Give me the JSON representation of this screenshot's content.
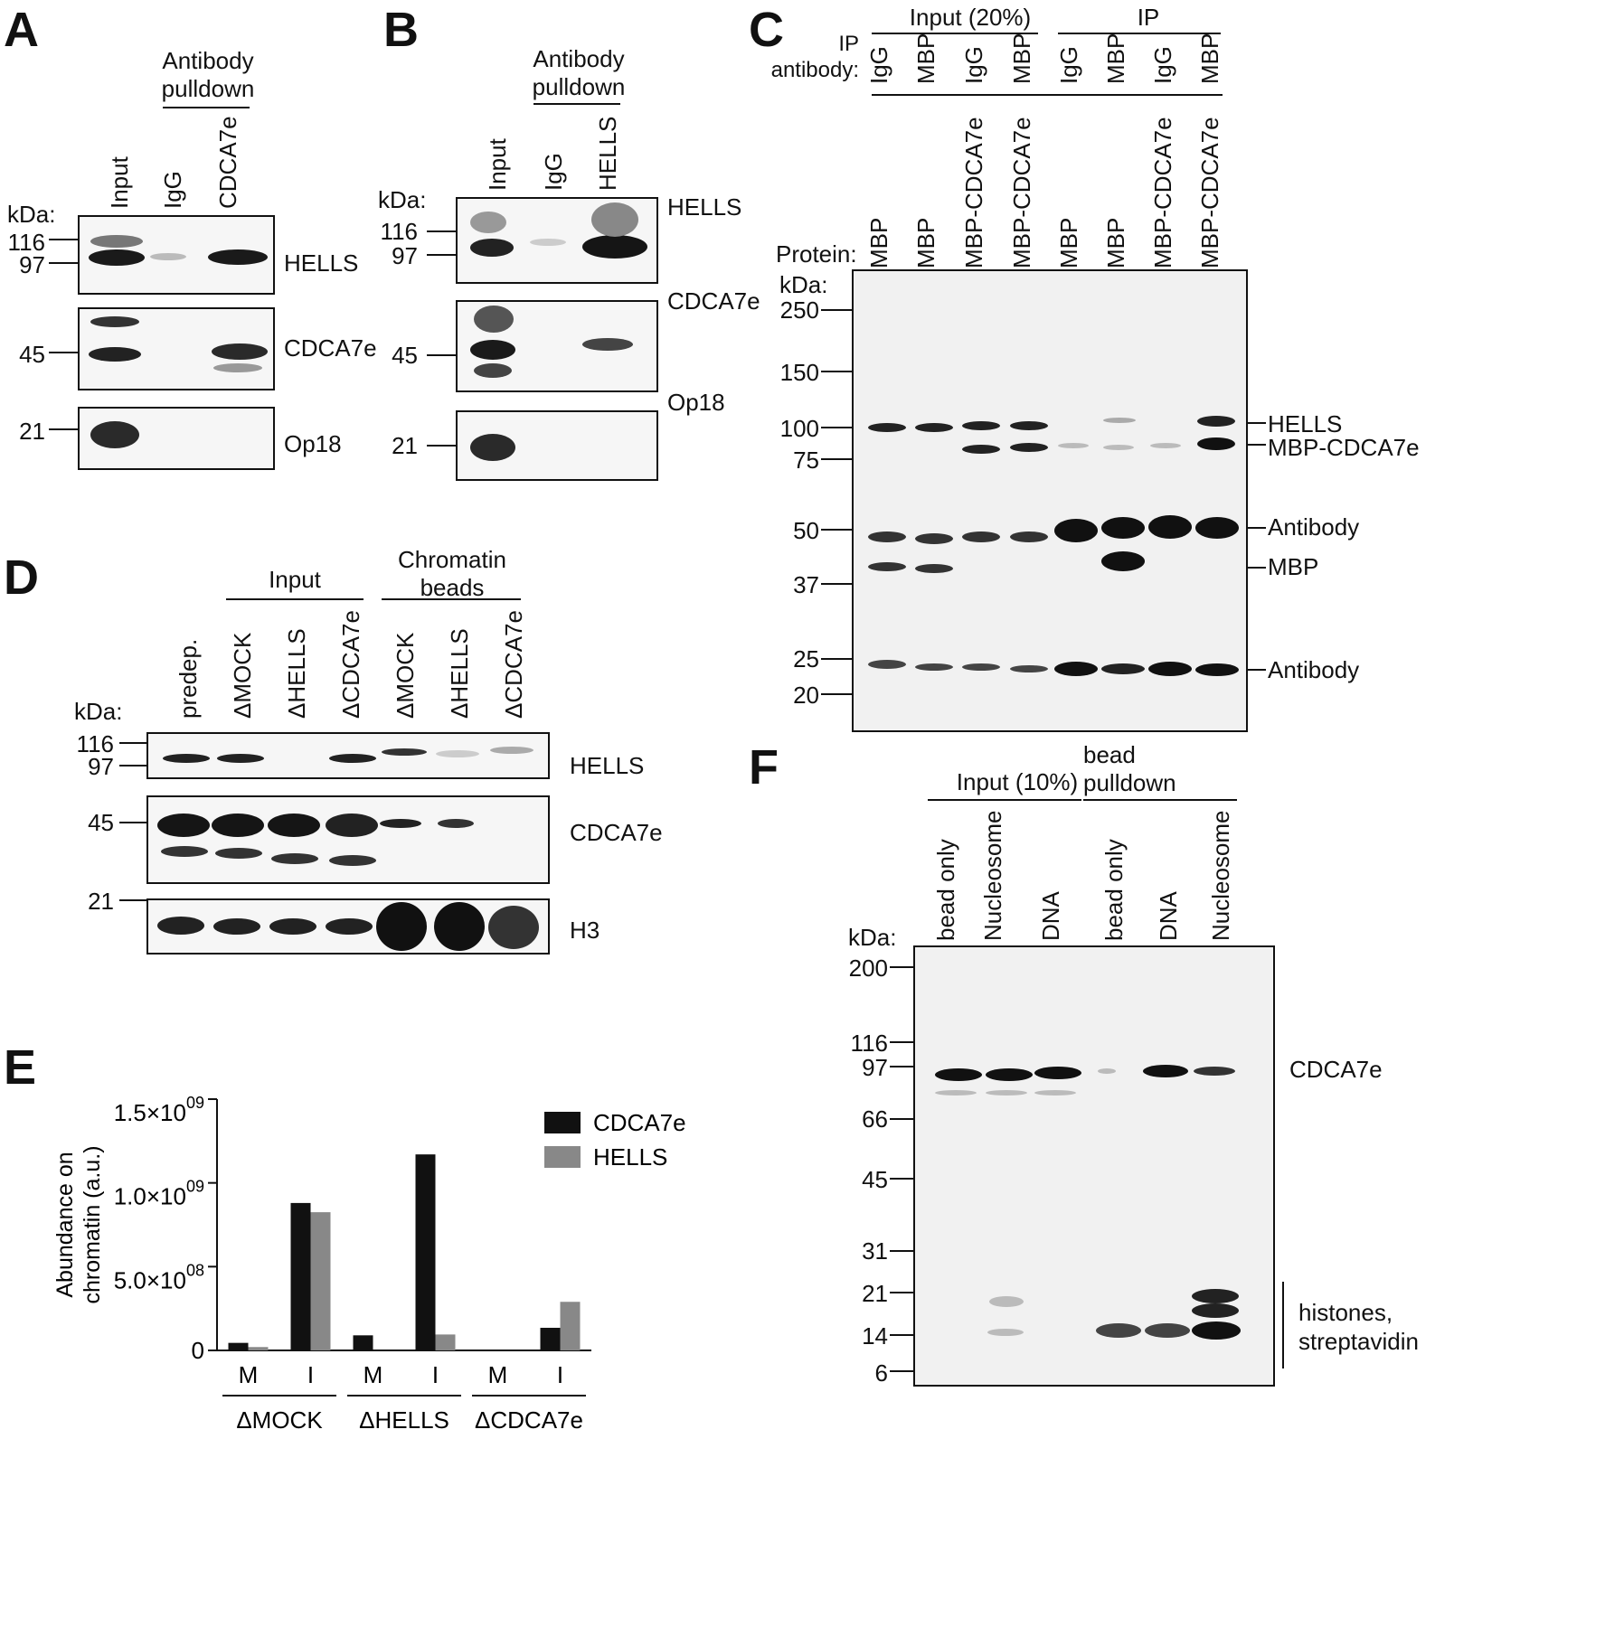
{
  "panels": {
    "A": {
      "letter": "A",
      "header": "Antibody pulldown",
      "lanes": [
        "Input",
        "IgG",
        "CDCA7e"
      ],
      "kda_label": "kDa:",
      "markers": [
        "116",
        "97",
        "45",
        "21"
      ],
      "rows": [
        "HELLS",
        "CDCA7e",
        "Op18"
      ]
    },
    "B": {
      "letter": "B",
      "header": "Antibody pulldown",
      "lanes": [
        "Input",
        "IgG",
        "HELLS"
      ],
      "kda_label": "kDa:",
      "markers": [
        "116",
        "97",
        "45",
        "21"
      ],
      "rows": [
        "HELLS",
        "CDCA7e",
        "Op18"
      ]
    },
    "C": {
      "letter": "C",
      "group_input": "Input (20%)",
      "group_ip": "IP",
      "ip_antibody_label": "IP antibody:",
      "antibody_lanes": [
        "IgG",
        "MBP",
        "IgG",
        "MBP",
        "IgG",
        "MBP",
        "IgG",
        "MBP"
      ],
      "protein_label": "Protein:",
      "protein_lanes": [
        "MBP",
        "MBP",
        "MBP-CDCA7e",
        "MBP-CDCA7e",
        "MBP",
        "MBP",
        "MBP-CDCA7e",
        "MBP-CDCA7e"
      ],
      "kda_label": "kDa:",
      "markers": [
        "250",
        "150",
        "100",
        "75",
        "50",
        "37",
        "25",
        "20"
      ],
      "band_labels": [
        "HELLS",
        "MBP-CDCA7e",
        "Antibody",
        "MBP",
        "Antibody"
      ]
    },
    "D": {
      "letter": "D",
      "group_input": "Input",
      "group_beads": "Chromatin beads",
      "lanes": [
        "predep.",
        "ΔMOCK",
        "ΔHELLS",
        "ΔCDCA7e",
        "ΔMOCK",
        "ΔHELLS",
        "ΔCDCA7e"
      ],
      "kda_label": "kDa:",
      "markers": [
        "116",
        "97",
        "45",
        "21"
      ],
      "rows": [
        "HELLS",
        "CDCA7e",
        "H3"
      ]
    },
    "E": {
      "letter": "E"
    },
    "F": {
      "letter": "F",
      "group_input": "Input (10%)",
      "group_pulldown": "bead pulldown",
      "lanes": [
        "bead only",
        "Nucleosome",
        "DNA",
        "bead only",
        "DNA",
        "Nucleosome"
      ],
      "kda_label": "kDa:",
      "markers": [
        "200",
        "116",
        "97",
        "66",
        "45",
        "31",
        "21",
        "14",
        "6"
      ],
      "band_labels": [
        "CDCA7e",
        "histones, streptavidin"
      ]
    }
  },
  "chart_data": {
    "type": "bar",
    "ylabel": "Abundance on chromatin (a.u.)",
    "ylim": [
      0,
      1500000000
    ],
    "yticks": [
      {
        "value": 0,
        "label": "0"
      },
      {
        "value": 500000000,
        "label": "5.0×10",
        "exp": "08"
      },
      {
        "value": 1000000000,
        "label": "1.0×10",
        "exp": "09"
      },
      {
        "value": 1500000000,
        "label": "1.5×10",
        "exp": "09"
      }
    ],
    "categories": [
      "M",
      "I",
      "M",
      "I",
      "M",
      "I"
    ],
    "groups": [
      "ΔMOCK",
      "ΔHELLS",
      "ΔCDCA7e"
    ],
    "series": [
      {
        "name": "CDCA7e",
        "color": "#111111",
        "values": [
          45000000,
          880000000,
          90000000,
          1170000000,
          0,
          135000000
        ]
      },
      {
        "name": "HELLS",
        "color": "#888888",
        "values": [
          20000000,
          825000000,
          0,
          95000000,
          0,
          290000000
        ]
      }
    ],
    "legend": "top-right"
  }
}
